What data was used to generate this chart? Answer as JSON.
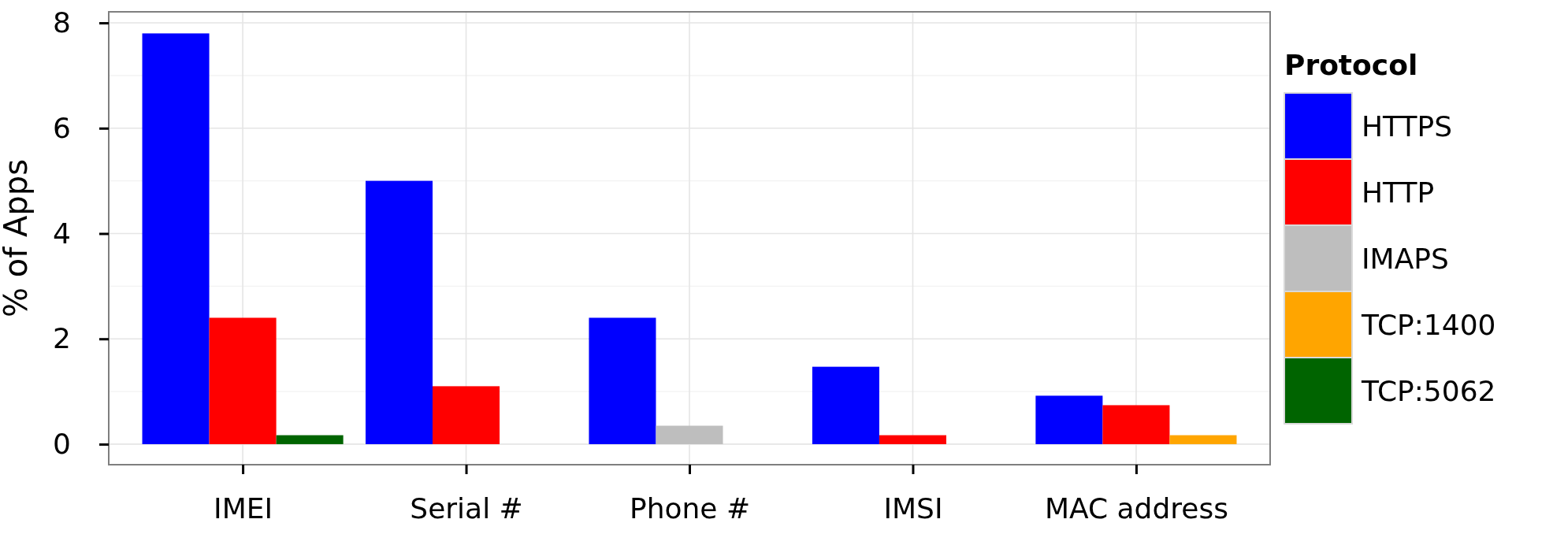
{
  "chart_data": {
    "type": "bar",
    "ylabel": "% of Apps",
    "legend_title": "Protocol",
    "categories": [
      "IMEI",
      "Serial #",
      "Phone #",
      "IMSI",
      "MAC address"
    ],
    "series": [
      {
        "name": "HTTPS",
        "color": "#0000ff",
        "values": [
          7.8,
          5.0,
          2.4,
          1.47,
          0.92
        ]
      },
      {
        "name": "HTTP",
        "color": "#ff0000",
        "values": [
          2.4,
          1.1,
          null,
          0.17,
          0.74
        ]
      },
      {
        "name": "IMAPS",
        "color": "#bebebe",
        "values": [
          null,
          null,
          0.35,
          null,
          null
        ]
      },
      {
        "name": "TCP:1400",
        "color": "#ffa500",
        "values": [
          null,
          null,
          null,
          null,
          0.17
        ]
      },
      {
        "name": "TCP:5062",
        "color": "#006400",
        "values": [
          0.17,
          null,
          null,
          null,
          null
        ]
      }
    ],
    "ylim": [
      -0.39,
      8.21
    ],
    "yticks": [
      0,
      2,
      4,
      6,
      8
    ],
    "grid": true,
    "legend": "right"
  }
}
